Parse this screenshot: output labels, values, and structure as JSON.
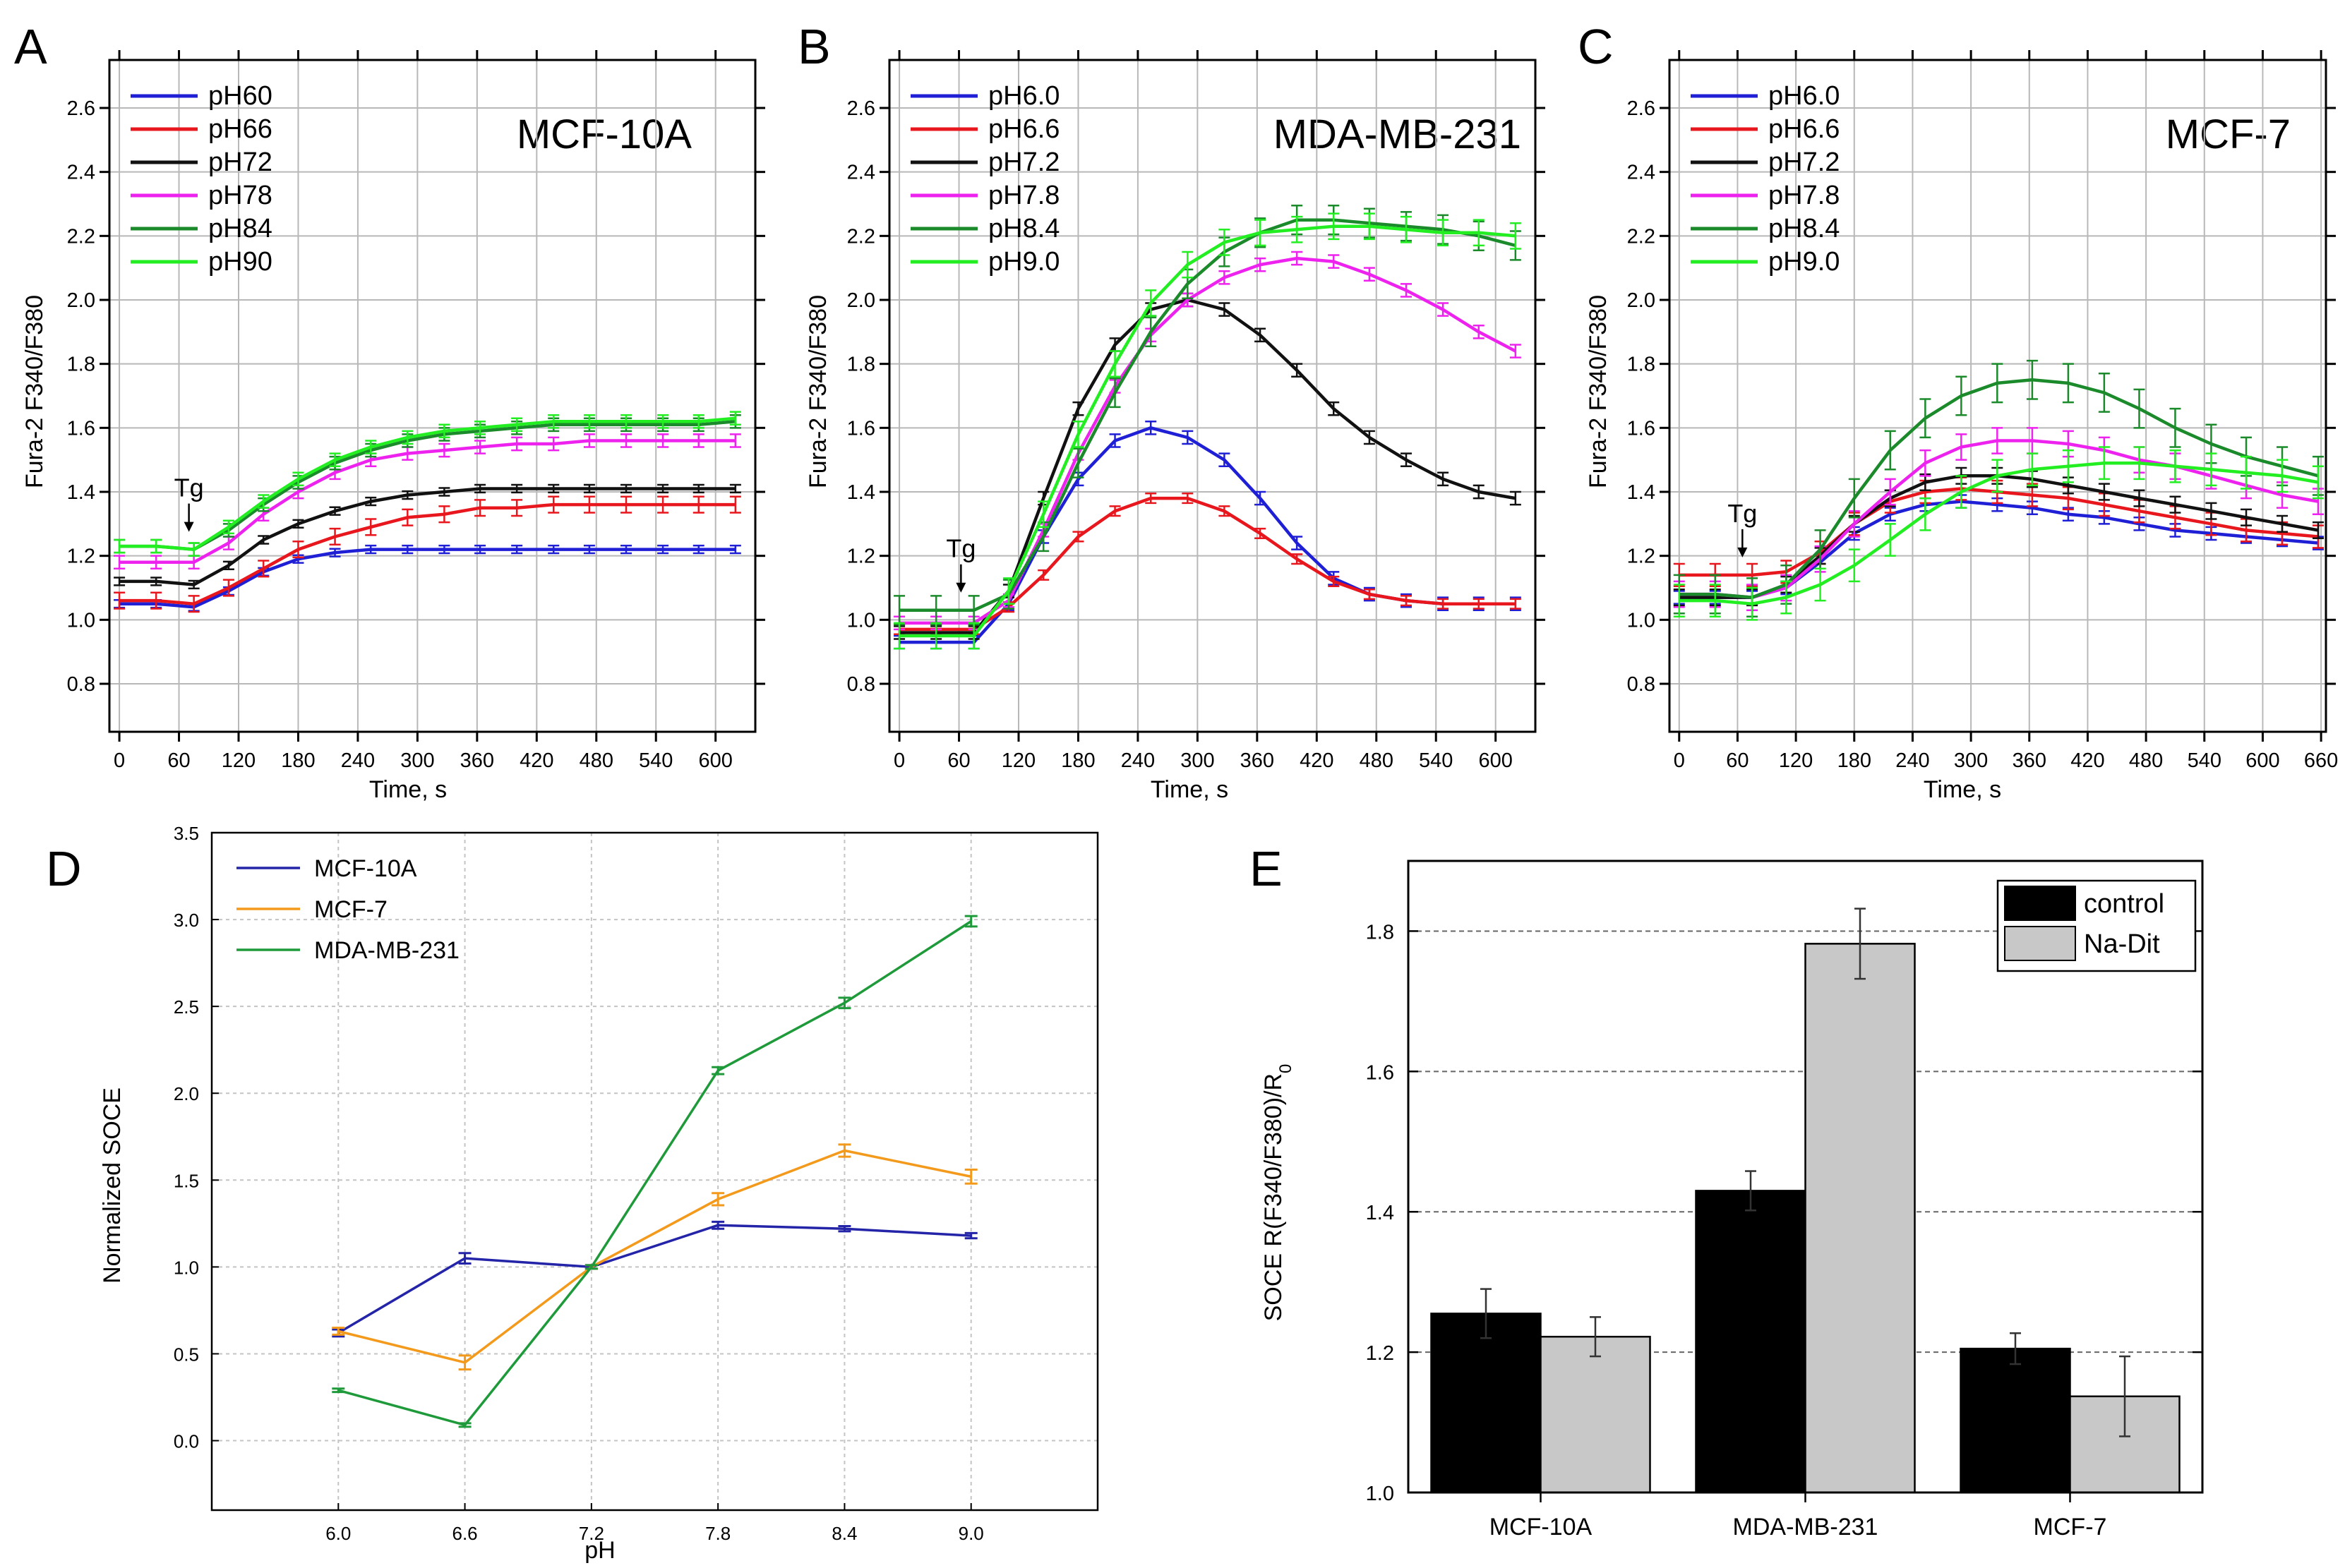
{
  "chart_data": [
    {
      "type": "line",
      "panel": "A",
      "title": "MCF-10A",
      "xlabel": "Time, s",
      "ylabel": "Fura-2 F340/F380",
      "xlim": [
        -10,
        640
      ],
      "ylim": [
        0.65,
        2.75
      ],
      "xticks": [
        0,
        60,
        120,
        180,
        240,
        300,
        360,
        420,
        480,
        540,
        600
      ],
      "yticks": [
        0.8,
        1.0,
        1.2,
        1.4,
        1.6,
        1.8,
        2.0,
        2.2,
        2.4,
        2.6
      ],
      "yticklabels": [
        "0.8",
        "1.0",
        "1.2",
        "1.4",
        "1.6",
        "1.8",
        "2.0",
        "2.2",
        "2.4",
        "2.6"
      ],
      "annotation": "Tg",
      "annotation_x": 70,
      "x": [
        0,
        37,
        75,
        110,
        145,
        180,
        217,
        253,
        290,
        327,
        363,
        400,
        437,
        473,
        510,
        547,
        583,
        620
      ],
      "series": [
        {
          "name": "pH60",
          "color": "#1f1fd6",
          "values": [
            1.05,
            1.05,
            1.04,
            1.09,
            1.15,
            1.19,
            1.21,
            1.22,
            1.22,
            1.22,
            1.22,
            1.22,
            1.22,
            1.22,
            1.22,
            1.22,
            1.22,
            1.22
          ],
          "err": 0.012
        },
        {
          "name": "pH66",
          "color": "#e8161d",
          "values": [
            1.06,
            1.06,
            1.05,
            1.1,
            1.16,
            1.22,
            1.26,
            1.29,
            1.32,
            1.33,
            1.35,
            1.35,
            1.36,
            1.36,
            1.36,
            1.36,
            1.36,
            1.36
          ],
          "err": 0.025
        },
        {
          "name": "pH72",
          "color": "#111111",
          "values": [
            1.12,
            1.12,
            1.11,
            1.17,
            1.25,
            1.3,
            1.34,
            1.37,
            1.39,
            1.4,
            1.41,
            1.41,
            1.41,
            1.41,
            1.41,
            1.41,
            1.41,
            1.41
          ],
          "err": 0.012
        },
        {
          "name": "pH78",
          "color": "#ee22ee",
          "values": [
            1.18,
            1.18,
            1.18,
            1.24,
            1.33,
            1.4,
            1.46,
            1.5,
            1.52,
            1.53,
            1.54,
            1.55,
            1.55,
            1.56,
            1.56,
            1.56,
            1.56,
            1.56
          ],
          "err": 0.02
        },
        {
          "name": "pH84",
          "color": "#1a8a2a",
          "values": [
            1.23,
            1.23,
            1.22,
            1.28,
            1.36,
            1.43,
            1.49,
            1.53,
            1.56,
            1.58,
            1.59,
            1.6,
            1.61,
            1.61,
            1.61,
            1.61,
            1.61,
            1.62
          ],
          "err": 0.02
        },
        {
          "name": "pH90",
          "color": "#22ee22",
          "values": [
            1.23,
            1.23,
            1.22,
            1.29,
            1.37,
            1.44,
            1.5,
            1.54,
            1.57,
            1.59,
            1.6,
            1.61,
            1.62,
            1.62,
            1.62,
            1.62,
            1.62,
            1.63
          ],
          "err": 0.02
        }
      ]
    },
    {
      "type": "line",
      "panel": "B",
      "title": "MDA-MB-231",
      "xlabel": "Time, s",
      "ylabel": "Fura-2 F340/F380",
      "xlim": [
        -10,
        640
      ],
      "ylim": [
        0.65,
        2.75
      ],
      "xticks": [
        0,
        60,
        120,
        180,
        240,
        300,
        360,
        420,
        480,
        540,
        600
      ],
      "yticks": [
        0.8,
        1.0,
        1.2,
        1.4,
        1.6,
        1.8,
        2.0,
        2.2,
        2.4,
        2.6
      ],
      "yticklabels": [
        "0.8",
        "1.0",
        "1.2",
        "1.4",
        "1.6",
        "1.8",
        "2.0",
        "2.2",
        "2.4",
        "2.6"
      ],
      "annotation": "Tg",
      "annotation_x": 62,
      "x": [
        0,
        37,
        75,
        110,
        145,
        180,
        217,
        253,
        290,
        327,
        363,
        400,
        437,
        473,
        510,
        547,
        583,
        620
      ],
      "series": [
        {
          "name": "pH6.0",
          "color": "#1f1fd6",
          "values": [
            0.93,
            0.93,
            0.93,
            1.05,
            1.26,
            1.44,
            1.56,
            1.6,
            1.57,
            1.5,
            1.38,
            1.24,
            1.13,
            1.08,
            1.06,
            1.05,
            1.05,
            1.05
          ],
          "err": 0.02
        },
        {
          "name": "pH6.6",
          "color": "#e8161d",
          "values": [
            0.97,
            0.97,
            0.97,
            1.04,
            1.14,
            1.26,
            1.34,
            1.38,
            1.38,
            1.34,
            1.27,
            1.19,
            1.12,
            1.08,
            1.06,
            1.05,
            1.05,
            1.05
          ],
          "err": 0.015
        },
        {
          "name": "pH7.2",
          "color": "#111111",
          "values": [
            0.96,
            0.96,
            0.96,
            1.09,
            1.38,
            1.66,
            1.86,
            1.97,
            2.0,
            1.97,
            1.89,
            1.78,
            1.66,
            1.57,
            1.5,
            1.44,
            1.4,
            1.38
          ],
          "err": 0.02
        },
        {
          "name": "pH7.8",
          "color": "#ee22ee",
          "values": [
            0.99,
            0.99,
            0.99,
            1.06,
            1.28,
            1.52,
            1.73,
            1.89,
            2.0,
            2.07,
            2.11,
            2.13,
            2.12,
            2.08,
            2.03,
            1.97,
            1.9,
            1.84
          ],
          "err": 0.02
        },
        {
          "name": "pH8.4",
          "color": "#1a8a2a",
          "values": [
            1.03,
            1.03,
            1.03,
            1.08,
            1.26,
            1.49,
            1.71,
            1.9,
            2.05,
            2.15,
            2.21,
            2.25,
            2.25,
            2.24,
            2.23,
            2.22,
            2.2,
            2.17
          ],
          "err": 0.045
        },
        {
          "name": "pH9.0",
          "color": "#22ee22",
          "values": [
            0.95,
            0.95,
            0.95,
            1.09,
            1.33,
            1.58,
            1.8,
            1.99,
            2.11,
            2.18,
            2.21,
            2.22,
            2.23,
            2.23,
            2.22,
            2.21,
            2.21,
            2.2
          ],
          "err": 0.04
        }
      ]
    },
    {
      "type": "line",
      "panel": "C",
      "title": "MCF-7",
      "xlabel": "Time, s",
      "ylabel": "Fura-2 F340/F380",
      "xlim": [
        -10,
        665
      ],
      "ylim": [
        0.65,
        2.75
      ],
      "xticks": [
        0,
        60,
        120,
        180,
        240,
        300,
        360,
        420,
        480,
        540,
        600,
        660
      ],
      "yticks": [
        0.8,
        1.0,
        1.2,
        1.4,
        1.6,
        1.8,
        2.0,
        2.2,
        2.4,
        2.6
      ],
      "yticklabels": [
        "0.8",
        "1.0",
        "1.2",
        "1.4",
        "1.6",
        "1.8",
        "2.0",
        "2.2",
        "2.4",
        "2.6"
      ],
      "annotation": "Tg",
      "annotation_x": 65,
      "x": [
        0,
        37,
        75,
        110,
        145,
        180,
        217,
        253,
        290,
        327,
        363,
        400,
        437,
        473,
        510,
        547,
        583,
        620,
        657
      ],
      "series": [
        {
          "name": "pH6.0",
          "color": "#1f1fd6",
          "values": [
            1.07,
            1.07,
            1.07,
            1.1,
            1.18,
            1.27,
            1.33,
            1.36,
            1.37,
            1.36,
            1.35,
            1.33,
            1.32,
            1.3,
            1.28,
            1.27,
            1.26,
            1.25,
            1.24
          ],
          "err": 0.02
        },
        {
          "name": "pH6.6",
          "color": "#e8161d",
          "values": [
            1.14,
            1.14,
            1.14,
            1.15,
            1.21,
            1.3,
            1.37,
            1.4,
            1.41,
            1.4,
            1.39,
            1.38,
            1.36,
            1.34,
            1.32,
            1.3,
            1.28,
            1.27,
            1.26
          ],
          "err": 0.035
        },
        {
          "name": "pH7.2",
          "color": "#111111",
          "values": [
            1.07,
            1.07,
            1.07,
            1.11,
            1.2,
            1.3,
            1.38,
            1.43,
            1.45,
            1.45,
            1.44,
            1.42,
            1.4,
            1.38,
            1.36,
            1.34,
            1.32,
            1.3,
            1.28
          ],
          "err": 0.025
        },
        {
          "name": "pH7.8",
          "color": "#ee22ee",
          "values": [
            1.08,
            1.08,
            1.07,
            1.1,
            1.19,
            1.3,
            1.4,
            1.49,
            1.54,
            1.56,
            1.56,
            1.55,
            1.53,
            1.5,
            1.48,
            1.45,
            1.42,
            1.39,
            1.37
          ],
          "err": 0.04
        },
        {
          "name": "pH8.4",
          "color": "#1a8a2a",
          "values": [
            1.08,
            1.08,
            1.07,
            1.11,
            1.22,
            1.38,
            1.53,
            1.63,
            1.7,
            1.74,
            1.75,
            1.74,
            1.71,
            1.66,
            1.6,
            1.55,
            1.51,
            1.48,
            1.45
          ],
          "err": 0.06
        },
        {
          "name": "pH9.0",
          "color": "#22ee22",
          "values": [
            1.06,
            1.06,
            1.05,
            1.07,
            1.11,
            1.17,
            1.25,
            1.33,
            1.4,
            1.45,
            1.47,
            1.48,
            1.49,
            1.49,
            1.48,
            1.47,
            1.46,
            1.45,
            1.43
          ],
          "err": 0.05
        }
      ]
    },
    {
      "type": "line",
      "panel": "D",
      "title": "",
      "xlabel": "pH",
      "ylabel": "Normalized SOCE",
      "xlim": [
        5.4,
        9.6
      ],
      "ylim": [
        -0.4,
        3.5
      ],
      "x": [
        6.0,
        6.6,
        7.2,
        7.8,
        8.4,
        9.0
      ],
      "xticklabels": [
        "6.0",
        "6.6",
        "7.2",
        "7.8",
        "8.4",
        "9.0"
      ],
      "yticks": [
        0.0,
        0.5,
        1.0,
        1.5,
        2.0,
        2.5,
        3.0,
        3.5
      ],
      "yticklabels": [
        "0.0",
        "0.5",
        "1.0",
        "1.5",
        "2.0",
        "2.5",
        "3.0",
        "3.5"
      ],
      "series": [
        {
          "name": "MCF-10A",
          "color": "#2424a8",
          "values": [
            0.62,
            1.05,
            1.0,
            1.24,
            1.22,
            1.18
          ],
          "err": [
            0.02,
            0.03,
            0.01,
            0.02,
            0.015,
            0.015
          ]
        },
        {
          "name": "MCF-7",
          "color": "#f39a1c",
          "values": [
            0.63,
            0.45,
            1.0,
            1.39,
            1.67,
            1.52
          ],
          "err": [
            0.02,
            0.04,
            0.01,
            0.035,
            0.035,
            0.04
          ]
        },
        {
          "name": "MDA-MB-231",
          "color": "#1f9a3a",
          "values": [
            0.29,
            0.09,
            1.0,
            2.13,
            2.52,
            2.99
          ],
          "err": [
            0.01,
            0.01,
            0.01,
            0.02,
            0.03,
            0.03
          ]
        }
      ]
    },
    {
      "type": "bar",
      "panel": "E",
      "title": "",
      "xlabel": "",
      "ylabel": "SOCE R(F340/F380)/R",
      "ylabel_subscript": "0",
      "ylim": [
        1.0,
        1.9
      ],
      "yticks": [
        1.0,
        1.2,
        1.4,
        1.6,
        1.8
      ],
      "yticklabels": [
        "1.0",
        "1.2",
        "1.4",
        "1.6",
        "1.8"
      ],
      "categories": [
        "MCF-10A",
        "MDA-MB-231",
        "MCF-7"
      ],
      "series": [
        {
          "name": "control",
          "color": "#000000",
          "values": [
            1.255,
            1.43,
            1.205
          ],
          "err": [
            0.035,
            0.028,
            0.022
          ]
        },
        {
          "name": "Na-Dit",
          "color": "#c8c8c8",
          "values": [
            1.222,
            1.782,
            1.137
          ],
          "err": [
            0.028,
            0.05,
            0.057
          ]
        }
      ]
    }
  ]
}
